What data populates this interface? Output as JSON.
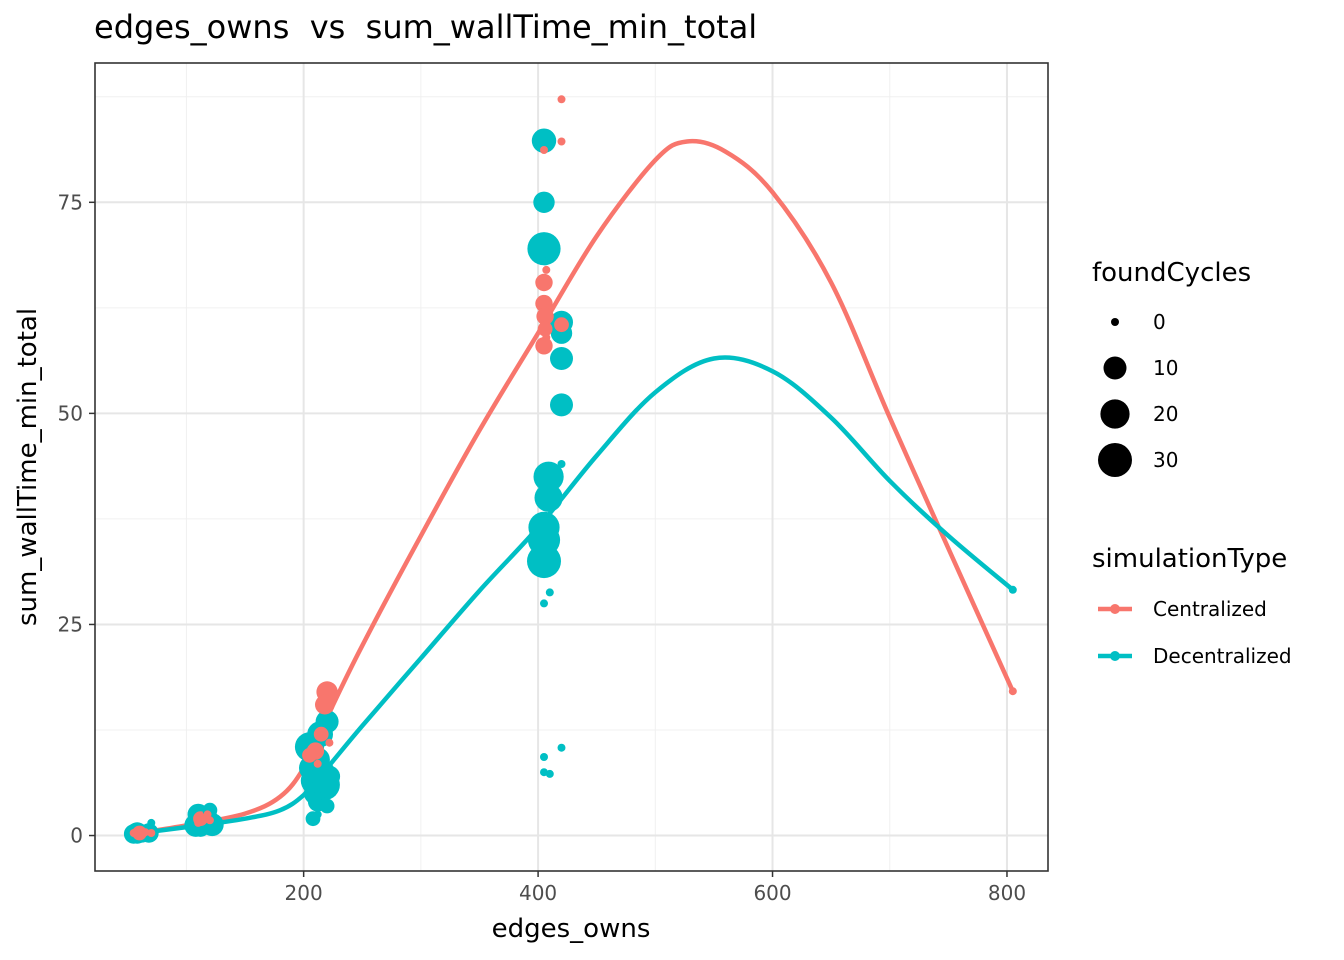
{
  "chart_data": {
    "type": "scatter",
    "title": "edges_owns  vs  sum_wallTime_min_total",
    "xlabel": "edges_owns",
    "ylabel": "sum_wallTime_min_total",
    "xlim": [
      22,
      835
    ],
    "ylim": [
      -4.2,
      91.5
    ],
    "xticks": [
      200,
      400,
      600,
      800
    ],
    "yticks": [
      0,
      25,
      50,
      75
    ],
    "grid": true,
    "legend_position": "right",
    "size_legend": {
      "title": "foundCycles",
      "values": [
        0,
        10,
        20,
        30
      ]
    },
    "color_legend": {
      "title": "simulationType",
      "entries": [
        "Centralized",
        "Decentralized"
      ]
    },
    "colors": {
      "Centralized": "#F8766D",
      "Decentralized": "#00BFC4"
    },
    "series": [
      {
        "name": "Centralized",
        "points": [
          [
            55,
            0.3,
            0
          ],
          [
            60,
            0.3,
            2
          ],
          [
            65,
            0.4,
            0
          ],
          [
            70,
            0.3,
            0
          ],
          [
            110,
            1.5,
            0
          ],
          [
            112,
            2.0,
            2
          ],
          [
            118,
            2.5,
            0
          ],
          [
            120,
            1.8,
            0
          ],
          [
            205,
            9.5,
            2
          ],
          [
            210,
            10.0,
            4
          ],
          [
            212,
            8.5,
            0
          ],
          [
            215,
            12.0,
            2
          ],
          [
            218,
            15.5,
            6
          ],
          [
            220,
            17.0,
            8
          ],
          [
            222,
            11.0,
            0
          ],
          [
            405,
            81.2,
            0
          ],
          [
            405,
            65.5,
            4
          ],
          [
            405,
            63.0,
            4
          ],
          [
            406,
            61.5,
            4
          ],
          [
            406,
            60.0,
            2
          ],
          [
            407,
            59.0,
            0
          ],
          [
            405,
            58.0,
            4
          ],
          [
            407,
            67.0,
            0
          ],
          [
            420,
            87.2,
            0
          ],
          [
            420,
            82.2,
            0
          ],
          [
            420,
            60.5,
            2
          ],
          [
            805,
            17.1,
            0
          ]
        ],
        "smooth": [
          [
            55,
            0.2
          ],
          [
            100,
            1.2
          ],
          [
            150,
            2.6
          ],
          [
            180,
            4.6
          ],
          [
            200,
            8.0
          ],
          [
            220,
            14.0
          ],
          [
            250,
            22.5
          ],
          [
            300,
            35.5
          ],
          [
            350,
            48.0
          ],
          [
            400,
            59.5
          ],
          [
            450,
            71.0
          ],
          [
            500,
            80.0
          ],
          [
            527,
            82.2
          ],
          [
            560,
            81.0
          ],
          [
            600,
            76.2
          ],
          [
            650,
            65.5
          ],
          [
            700,
            49.5
          ],
          [
            750,
            34.0
          ],
          [
            805,
            17.1
          ]
        ]
      },
      {
        "name": "Decentralized",
        "points": [
          [
            55,
            0.2,
            6
          ],
          [
            58,
            0.3,
            8
          ],
          [
            62,
            0.2,
            4
          ],
          [
            68,
            0.3,
            6
          ],
          [
            70,
            1.5,
            0
          ],
          [
            108,
            1.2,
            10
          ],
          [
            110,
            2.5,
            8
          ],
          [
            112,
            1.0,
            6
          ],
          [
            115,
            1.8,
            12
          ],
          [
            118,
            2.2,
            6
          ],
          [
            120,
            3.0,
            2
          ],
          [
            122,
            1.3,
            10
          ],
          [
            205,
            10.5,
            20
          ],
          [
            207,
            8.0,
            14
          ],
          [
            210,
            6.5,
            20
          ],
          [
            210,
            5.0,
            10
          ],
          [
            212,
            4.0,
            6
          ],
          [
            212,
            9.0,
            12
          ],
          [
            214,
            12.0,
            14
          ],
          [
            215,
            7.5,
            16
          ],
          [
            218,
            6.0,
            22
          ],
          [
            220,
            13.5,
            10
          ],
          [
            208,
            2.0,
            2
          ],
          [
            212,
            2.5,
            0
          ],
          [
            218,
            4.0,
            0
          ],
          [
            220,
            3.5,
            2
          ],
          [
            222,
            7.0,
            8
          ],
          [
            405,
            82.3,
            12
          ],
          [
            405,
            75.0,
            8
          ],
          [
            405,
            69.5,
            28
          ],
          [
            406,
            68.0,
            0
          ],
          [
            405,
            36.5,
            24
          ],
          [
            405,
            35.0,
            26
          ],
          [
            405,
            32.5,
            30
          ],
          [
            409,
            42.5,
            22
          ],
          [
            409,
            40.0,
            18
          ],
          [
            420,
            60.8,
            10
          ],
          [
            420,
            59.5,
            8
          ],
          [
            420,
            56.5,
            10
          ],
          [
            420,
            51.0,
            10
          ],
          [
            420,
            44.0,
            0
          ],
          [
            405,
            27.5,
            0
          ],
          [
            410,
            28.8,
            0
          ],
          [
            405,
            9.3,
            0
          ],
          [
            420,
            10.4,
            0
          ],
          [
            405,
            7.5,
            0
          ],
          [
            410,
            7.3,
            0
          ],
          [
            805,
            29.1,
            0
          ]
        ],
        "smooth": [
          [
            55,
            0.2
          ],
          [
            100,
            1.0
          ],
          [
            150,
            2.0
          ],
          [
            180,
            3.0
          ],
          [
            200,
            4.8
          ],
          [
            220,
            8.0
          ],
          [
            250,
            13.0
          ],
          [
            300,
            21.0
          ],
          [
            350,
            29.0
          ],
          [
            400,
            36.5
          ],
          [
            450,
            45.0
          ],
          [
            500,
            52.5
          ],
          [
            550,
            56.5
          ],
          [
            600,
            55.0
          ],
          [
            650,
            49.5
          ],
          [
            700,
            42.0
          ],
          [
            750,
            35.5
          ],
          [
            805,
            29.1
          ]
        ]
      }
    ]
  }
}
